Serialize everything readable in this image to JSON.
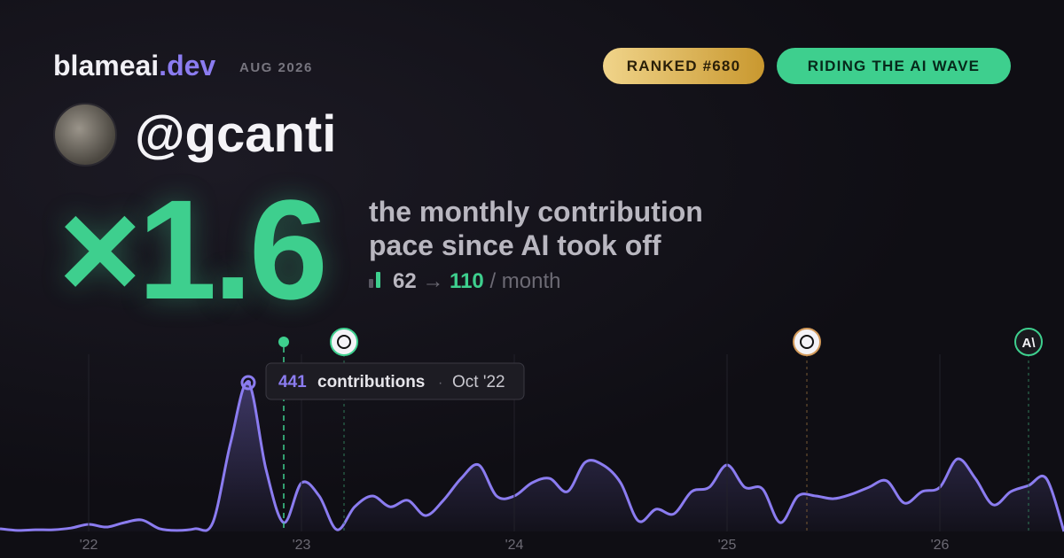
{
  "header": {
    "brand": "blameai",
    "brand_tld": ".dev",
    "period": "AUG 2026",
    "badges": [
      "RANKED #680",
      "RIDING THE AI WAVE"
    ]
  },
  "profile": {
    "username": "@gcanti"
  },
  "headline": {
    "multiplier": "×1.6",
    "description": [
      "the monthly contribution",
      "pace since AI took off"
    ],
    "before": 62,
    "arrow": "→",
    "after": 110,
    "unit": "/ month"
  },
  "chart_data": {
    "type": "line",
    "color": "#8b7cf0",
    "categories": [
      null,
      null,
      null,
      null,
      null,
      "'22",
      null,
      null,
      null,
      null,
      null,
      null,
      null,
      null,
      null,
      null,
      null,
      "'23",
      null,
      null,
      null,
      null,
      null,
      null,
      null,
      null,
      null,
      null,
      null,
      "'24",
      null,
      null,
      null,
      null,
      null,
      null,
      null,
      null,
      null,
      null,
      null,
      "'25",
      null,
      null,
      null,
      null,
      null,
      null,
      null,
      null,
      null,
      null,
      null,
      "'26",
      null,
      null,
      null,
      null,
      null,
      null,
      null
    ],
    "values": [
      8,
      3,
      5,
      5,
      10,
      21,
      13,
      26,
      34,
      8,
      3,
      8,
      26,
      262,
      441,
      184,
      26,
      144,
      105,
      5,
      73,
      105,
      73,
      92,
      47,
      92,
      157,
      197,
      105,
      105,
      144,
      157,
      118,
      205,
      197,
      144,
      31,
      66,
      52,
      118,
      131,
      197,
      131,
      126,
      26,
      105,
      105,
      97,
      110,
      131,
      150,
      84,
      118,
      131,
      215,
      157,
      79,
      118,
      136,
      157,
      0
    ],
    "tooltip": {
      "value_index": 14,
      "text": "contributions",
      "separator": "·",
      "date": "Oct '22"
    },
    "events": [
      "A\\"
    ]
  }
}
